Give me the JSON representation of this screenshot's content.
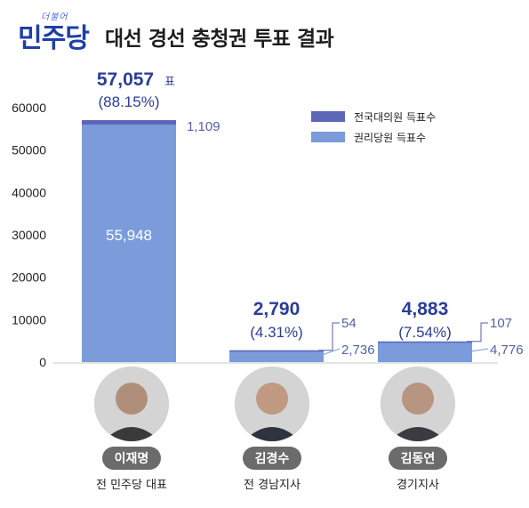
{
  "header": {
    "logo_small": "더불어",
    "logo_main": "민주당",
    "title": "대선 경선 충청권 투표 결과"
  },
  "chart_data": {
    "type": "bar",
    "stacked": true,
    "categories": [
      "이재명",
      "김경수",
      "김동연"
    ],
    "series": [
      {
        "name": "전국대의원 득표수",
        "values": [
          1109,
          54,
          107
        ],
        "color": "#5d67b8"
      },
      {
        "name": "권리당원 득표수",
        "values": [
          55948,
          2736,
          4776
        ],
        "color": "#7b9bdb"
      }
    ],
    "totals": [
      "57,057",
      "2,790",
      "4,883"
    ],
    "percents": [
      "(88.15%)",
      "(4.31%)",
      "(7.54%)"
    ],
    "total_suffix": "표",
    "labels": {
      "delegate": [
        "1,109",
        "54",
        "107"
      ],
      "member": [
        "55,948",
        "2,736",
        "4,776"
      ]
    },
    "yticks": [
      0,
      10000,
      20000,
      30000,
      40000,
      50000,
      60000
    ],
    "ytick_labels": [
      "0",
      "10000",
      "20000",
      "30000",
      "40000",
      "50000",
      "60000"
    ],
    "ylim": [
      0,
      60000
    ],
    "legend_position": "top-right",
    "grid": false
  },
  "candidates": [
    {
      "name": "이재명",
      "title": "전 민주당 대표"
    },
    {
      "name": "김경수",
      "title": "전 경남지사"
    },
    {
      "name": "김동연",
      "title": "경기지사"
    }
  ]
}
